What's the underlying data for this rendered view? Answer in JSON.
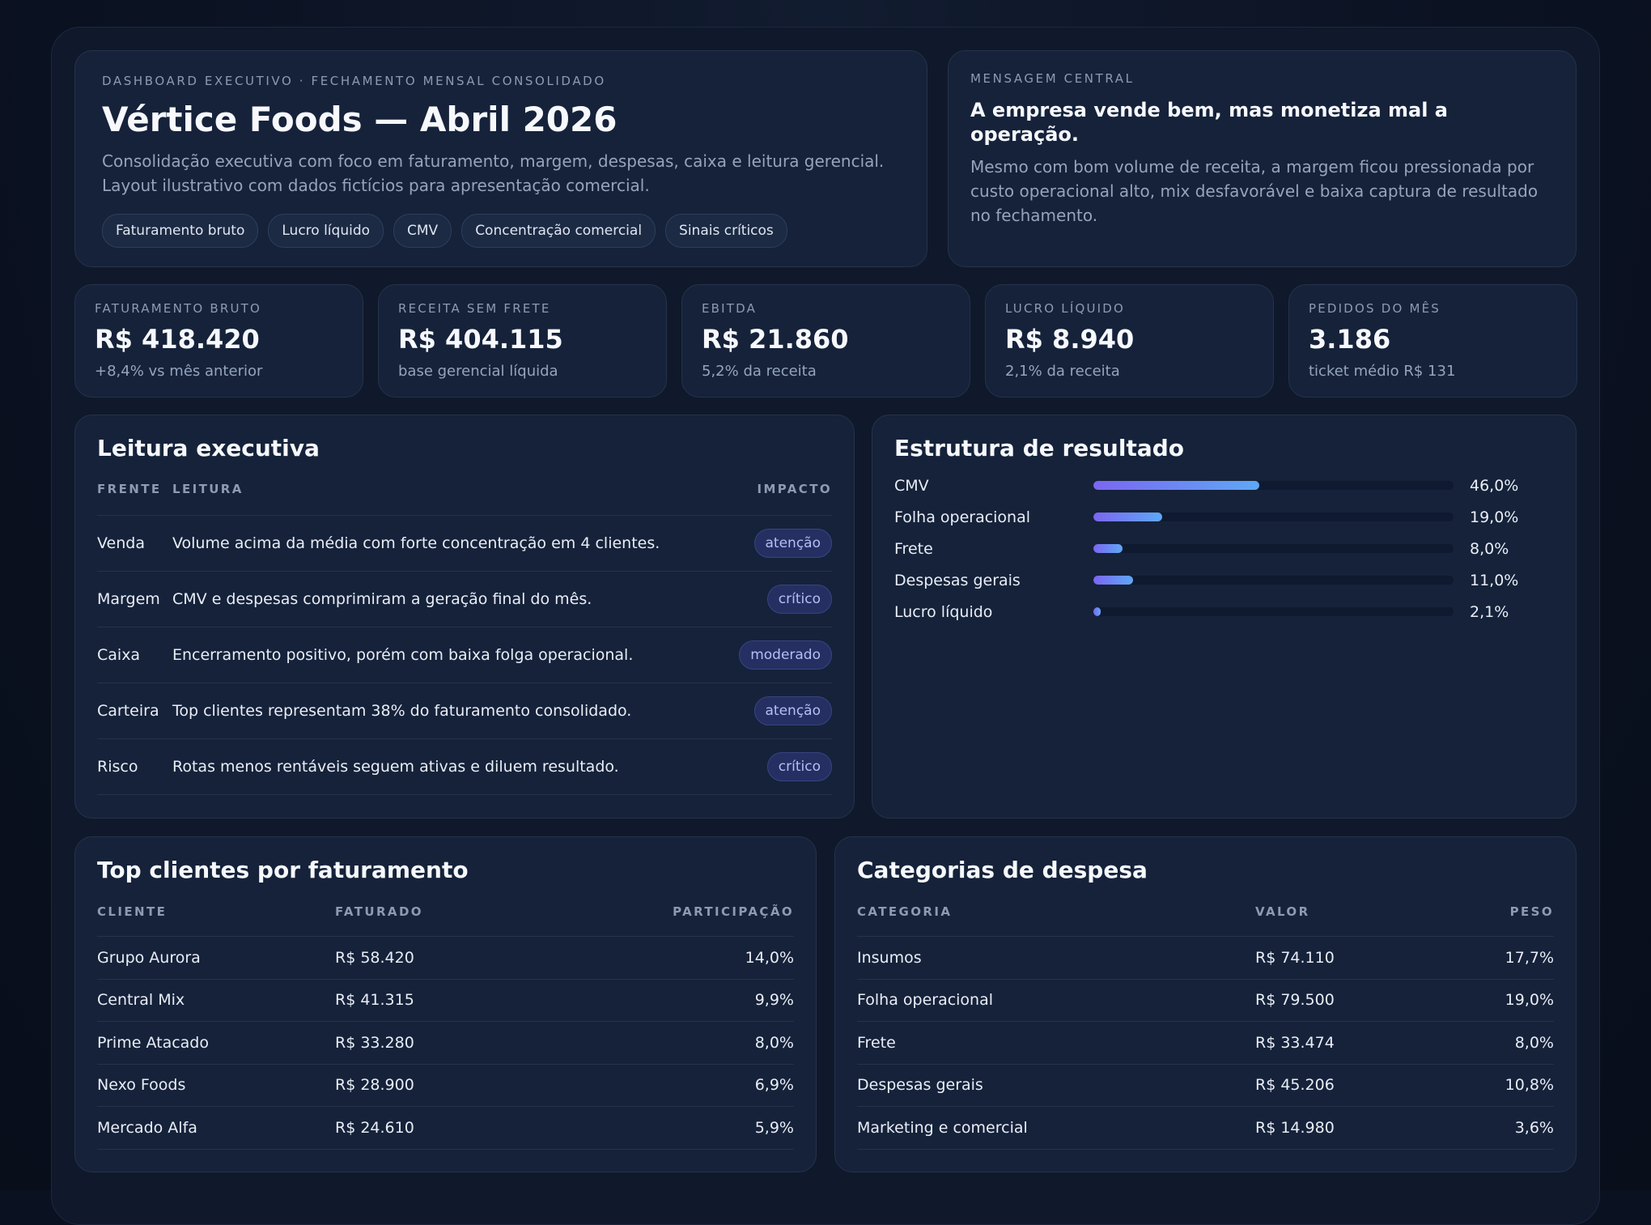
{
  "hero": {
    "eyebrow": "DASHBOARD EXECUTIVO · FECHAMENTO MENSAL CONSOLIDADO",
    "title": "Vértice Foods — Abril 2026",
    "description_line1": "Consolidação executiva com foco em faturamento, margem, despesas, caixa e leitura gerencial.",
    "description_line2": "Layout ilustrativo com dados fictícios para apresentação comercial.",
    "tags": [
      "Faturamento bruto",
      "Lucro líquido",
      "CMV",
      "Concentração comercial",
      "Sinais críticos"
    ]
  },
  "message": {
    "eyebrow": "MENSAGEM CENTRAL",
    "headline": "A empresa vende bem, mas monetiza mal a operação.",
    "body": "Mesmo com bom volume de receita, a margem ficou pressionada por custo operacional alto, mix desfavorável e baixa captura de resultado no fechamento."
  },
  "kpis": [
    {
      "label": "FATURAMENTO BRUTO",
      "value": "R$ 418.420",
      "sub": "+8,4% vs mês anterior"
    },
    {
      "label": "RECEITA SEM FRETE",
      "value": "R$ 404.115",
      "sub": "base gerencial líquida"
    },
    {
      "label": "EBITDA",
      "value": "R$ 21.860",
      "sub": "5,2% da receita"
    },
    {
      "label": "LUCRO LÍQUIDO",
      "value": "R$ 8.940",
      "sub": "2,1% da receita"
    },
    {
      "label": "PEDIDOS DO MÊS",
      "value": "3.186",
      "sub": "ticket médio R$ 131"
    }
  ],
  "leitura": {
    "title": "Leitura executiva",
    "headers": {
      "frente": "FRENTE",
      "leitura": "LEITURA",
      "impacto": "IMPACTO"
    },
    "rows": [
      {
        "frente": "Venda",
        "leitura": "Volume acima da média com forte concentração em 4 clientes.",
        "impacto": "atenção"
      },
      {
        "frente": "Margem",
        "leitura": "CMV e despesas comprimiram a geração final do mês.",
        "impacto": "crítico"
      },
      {
        "frente": "Caixa",
        "leitura": "Encerramento positivo, porém com baixa folga operacional.",
        "impacto": "moderado"
      },
      {
        "frente": "Carteira",
        "leitura": "Top clientes representam 38% do faturamento consolidado.",
        "impacto": "atenção"
      },
      {
        "frente": "Risco",
        "leitura": "Rotas menos rentáveis seguem ativas e diluem resultado.",
        "impacto": "crítico"
      }
    ]
  },
  "estrutura": {
    "title": "Estrutura de resultado",
    "items": [
      {
        "label": "CMV",
        "value_text": "46,0%",
        "value": 46.0
      },
      {
        "label": "Folha operacional",
        "value_text": "19,0%",
        "value": 19.0
      },
      {
        "label": "Frete",
        "value_text": "8,0%",
        "value": 8.0
      },
      {
        "label": "Despesas gerais",
        "value_text": "11,0%",
        "value": 11.0
      },
      {
        "label": "Lucro líquido",
        "value_text": "2,1%",
        "value": 2.1
      }
    ],
    "max_scale": 100,
    "bar_gradient": [
      "#7b66f2",
      "#5ea8f5"
    ]
  },
  "clientes": {
    "title": "Top clientes por faturamento",
    "headers": {
      "c1": "CLIENTE",
      "c2": "FATURADO",
      "c3": "PARTICIPAÇÃO"
    },
    "rows": [
      {
        "c1": "Grupo Aurora",
        "c2": "R$ 58.420",
        "c3": "14,0%"
      },
      {
        "c1": "Central Mix",
        "c2": "R$ 41.315",
        "c3": "9,9%"
      },
      {
        "c1": "Prime Atacado",
        "c2": "R$ 33.280",
        "c3": "8,0%"
      },
      {
        "c1": "Nexo Foods",
        "c2": "R$ 28.900",
        "c3": "6,9%"
      },
      {
        "c1": "Mercado Alfa",
        "c2": "R$ 24.610",
        "c3": "5,9%"
      }
    ]
  },
  "despesas": {
    "title": "Categorias de despesa",
    "headers": {
      "c1": "CATEGORIA",
      "c2": "VALOR",
      "c3": "PESO"
    },
    "rows": [
      {
        "c1": "Insumos",
        "c2": "R$ 74.110",
        "c3": "17,7%"
      },
      {
        "c1": "Folha operacional",
        "c2": "R$ 79.500",
        "c3": "19,0%"
      },
      {
        "c1": "Frete",
        "c2": "R$ 33.474",
        "c3": "8,0%"
      },
      {
        "c1": "Despesas gerais",
        "c2": "R$ 45.206",
        "c3": "10,8%"
      },
      {
        "c1": "Marketing e comercial",
        "c2": "R$ 14.980",
        "c3": "3,6%"
      }
    ]
  },
  "colors": {
    "background": "#0a1120",
    "card": "#15223a",
    "pill_bg": "#262f62",
    "pill_text": "#b6bff5",
    "muted_text": "#95a3bc"
  }
}
